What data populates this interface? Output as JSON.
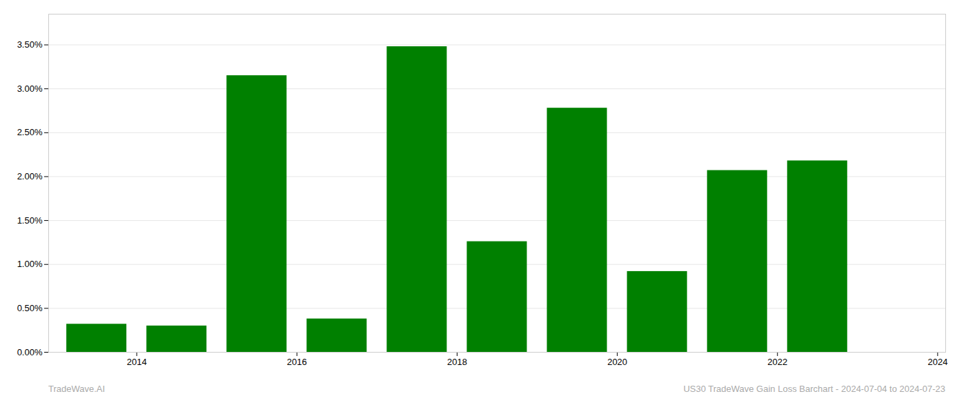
{
  "chart_data": {
    "type": "bar",
    "x": [
      2014,
      2015,
      2016,
      2017,
      2018,
      2019,
      2020,
      2021,
      2022,
      2023
    ],
    "values": [
      0.0032,
      0.003,
      0.0315,
      0.0038,
      0.0348,
      0.0126,
      0.0278,
      0.0092,
      0.0207,
      0.0218
    ],
    "color": "#008000",
    "xlim": [
      2013.4,
      2024.6
    ],
    "xticks": [
      {
        "value": 2014.5,
        "label": "2014"
      },
      {
        "value": 2016.5,
        "label": "2016"
      },
      {
        "value": 2018.5,
        "label": "2018"
      },
      {
        "value": 2020.5,
        "label": "2020"
      },
      {
        "value": 2022.5,
        "label": "2022"
      },
      {
        "value": 2024.5,
        "label": "2024"
      }
    ],
    "ylim": [
      0,
      0.0385
    ],
    "yticks": [
      {
        "value": 0.0,
        "label": "0.00%"
      },
      {
        "value": 0.005,
        "label": "0.50%"
      },
      {
        "value": 0.01,
        "label": "1.00%"
      },
      {
        "value": 0.015,
        "label": "1.50%"
      },
      {
        "value": 0.02,
        "label": "2.00%"
      },
      {
        "value": 0.025,
        "label": "2.50%"
      },
      {
        "value": 0.03,
        "label": "3.00%"
      },
      {
        "value": 0.035,
        "label": "3.50%"
      }
    ],
    "grid": true,
    "annotations": [
      "TradeWave.AI",
      "US30 TradeWave Gain Loss Barchart - 2024-07-04 to 2024-07-23"
    ]
  }
}
